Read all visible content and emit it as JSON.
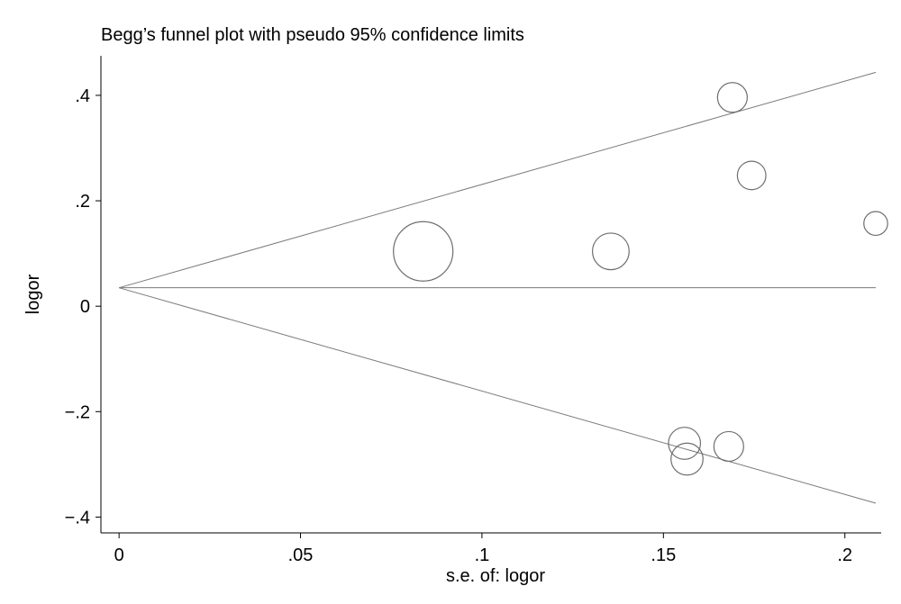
{
  "chart_data": {
    "type": "scatter",
    "title": "Begg’s funnel plot with pseudo 95% confidence limits",
    "xlabel": "s.e. of: logor",
    "ylabel": "logor",
    "xlim": [
      -0.005,
      0.21
    ],
    "ylim": [
      -0.43,
      0.475
    ],
    "x_ticks": [
      {
        "value": 0,
        "label": "0"
      },
      {
        "value": 0.05,
        "label": ".05"
      },
      {
        "value": 0.1,
        "label": ".1"
      },
      {
        "value": 0.15,
        "label": ".15"
      },
      {
        "value": 0.2,
        "label": ".2"
      }
    ],
    "y_ticks": [
      {
        "value": -0.4,
        "label": "−.4"
      },
      {
        "value": -0.2,
        "label": "−.2"
      },
      {
        "value": 0,
        "label": "0"
      },
      {
        "value": 0.2,
        "label": ".2"
      },
      {
        "value": 0.4,
        "label": ".4"
      }
    ],
    "grid": false,
    "pooled_estimate": 0.035,
    "ci_multiplier": 1.96,
    "funnel_x_max": 0.2085,
    "points": [
      {
        "x": 0.0838,
        "y": 0.104,
        "weight": 1.0
      },
      {
        "x": 0.1355,
        "y": 0.104,
        "weight": 0.38
      },
      {
        "x": 0.1558,
        "y": -0.26,
        "weight": 0.29
      },
      {
        "x": 0.1565,
        "y": -0.29,
        "weight": 0.29
      },
      {
        "x": 0.168,
        "y": -0.266,
        "weight": 0.25
      },
      {
        "x": 0.169,
        "y": 0.396,
        "weight": 0.25
      },
      {
        "x": 0.1743,
        "y": 0.248,
        "weight": 0.23
      },
      {
        "x": 0.2085,
        "y": 0.157,
        "weight": 0.16
      }
    ]
  }
}
